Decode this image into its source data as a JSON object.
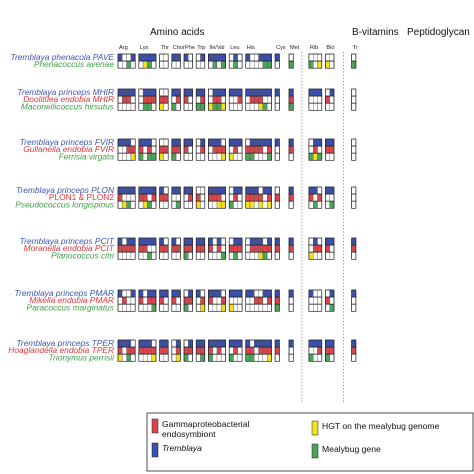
{
  "categories": [
    {
      "label": "Amino acids"
    },
    {
      "label": "B-vitamins"
    },
    {
      "label": "Peptidoglycan"
    }
  ],
  "gene_groups": [
    {
      "label": "Arg",
      "cols": 4
    },
    {
      "label": "Lys",
      "cols": 4
    },
    {
      "label": "Thr",
      "cols": 2
    },
    {
      "label": "Chor",
      "cols": 2
    },
    {
      "label": "Phe",
      "cols": 2
    },
    {
      "label": "Trp",
      "cols": 2
    },
    {
      "label": "Ile/Val",
      "cols": 4
    },
    {
      "label": "Leu",
      "cols": 3
    },
    {
      "label": "His",
      "cols": 6
    },
    {
      "label": "Cys",
      "cols": 1
    },
    {
      "label": "Met",
      "cols": 1
    },
    {
      "label": "Rib",
      "cols": 3
    },
    {
      "label": "Bio",
      "cols": 2
    },
    {
      "label": "Tr",
      "cols": 1
    }
  ],
  "organism_groups": [
    {
      "rows": [
        {
          "name": "Tremblaya phenacola PAVE",
          "type": "tremblaya"
        },
        {
          "name": "Phenacoccus avenae",
          "type": "mealybug"
        }
      ]
    },
    {
      "rows": [
        {
          "name": "Tremblaya princeps MHIR",
          "type": "tremblaya"
        },
        {
          "name": "Doolittlea endobia MHIR",
          "type": "endosymbiont"
        },
        {
          "name": "Maconellicoccus hirsutus",
          "type": "mealybug"
        }
      ]
    },
    {
      "rows": [
        {
          "name": "Tremblaya princeps FVIR",
          "type": "tremblaya"
        },
        {
          "name": "Gullanella endobia FVIR",
          "type": "endosymbiont"
        },
        {
          "name": "Ferrisia virgata",
          "type": "mealybug"
        }
      ]
    },
    {
      "rows": [
        {
          "name": "Tremblaya princeps PLON",
          "type": "tremblaya"
        },
        {
          "name": "PLON1 & PLON2",
          "type": "endosymbiont",
          "plain": true
        },
        {
          "name": "Pseudococcus longispinus",
          "type": "mealybug"
        }
      ]
    },
    {
      "rows": [
        {
          "name": "Tremblaya princeps PCIT",
          "type": "tremblaya"
        },
        {
          "name": "Moranella endobia PCIT",
          "type": "endosymbiont"
        },
        {
          "name": "Planococcus citri",
          "type": "mealybug"
        }
      ]
    },
    {
      "rows": [
        {
          "name": "Tremblaya princeps PMAR",
          "type": "tremblaya"
        },
        {
          "name": "Mikella endobia PMAR",
          "type": "endosymbiont"
        },
        {
          "name": "Paracoccus marginatus",
          "type": "mealybug"
        }
      ]
    },
    {
      "rows": [
        {
          "name": "Tremblaya princeps TPER",
          "type": "tremblaya"
        },
        {
          "name": "Hoaglandella endobia TPER",
          "type": "endosymbiont"
        },
        {
          "name": "Trionymus perrisii",
          "type": "mealybug"
        }
      ]
    }
  ],
  "legend": {
    "items": [
      {
        "label_lines": [
          "Gammaproteobacterial",
          "endosymbiont"
        ],
        "color": "#d9454a"
      },
      {
        "label_lines": [
          "HGT on the mealybug genome"
        ],
        "color": "#f3e21b"
      },
      {
        "label_lines": [
          "Tremblaya"
        ],
        "color": "#3b4fa8",
        "italic": true
      },
      {
        "label_lines": [
          "Mealybug gene"
        ],
        "color": "#4aa45a"
      }
    ]
  },
  "colors": {
    "tremblaya": "#3b4fa8",
    "endosymbiont": "#d9454a",
    "hgt": "#f3e21b",
    "mealybug": "#4aa45a",
    "label_tremblaya": "#3c55b5",
    "label_endosymbiont": "#e0383f",
    "label_mealybug": "#3f9e47"
  }
}
